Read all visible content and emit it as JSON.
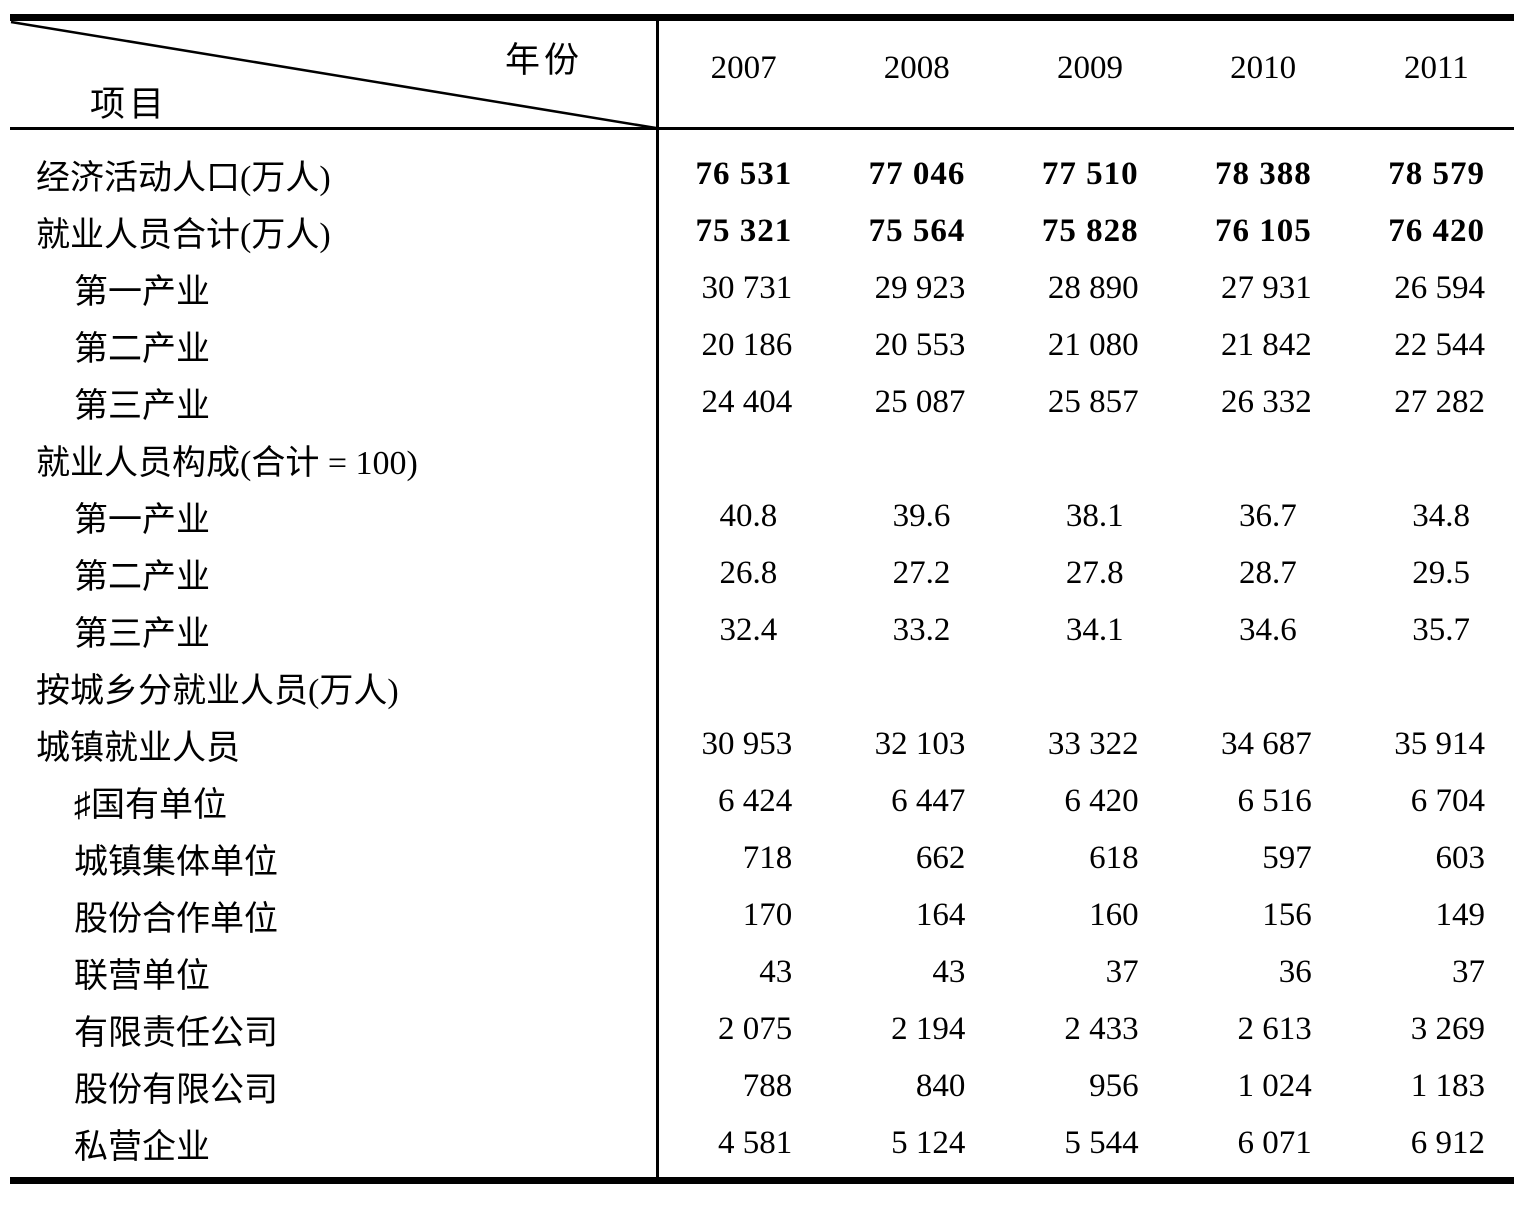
{
  "table": {
    "header": {
      "year_axis_label": "年份",
      "item_axis_label": "项目",
      "years": [
        "2007",
        "2008",
        "2009",
        "2010",
        "2011"
      ]
    },
    "rows": [
      {
        "label": "经济活动人口(万人)",
        "indent": 0,
        "bold": true,
        "values": [
          "76 531",
          "77 046",
          "77 510",
          "78 388",
          "78 579"
        ]
      },
      {
        "label": "就业人员合计(万人)",
        "indent": 0,
        "bold": true,
        "values": [
          "75 321",
          "75 564",
          "75 828",
          "76 105",
          "76 420"
        ]
      },
      {
        "label": "第一产业",
        "indent": 1,
        "bold": false,
        "values": [
          "30 731",
          "29 923",
          "28 890",
          "27 931",
          "26 594"
        ]
      },
      {
        "label": "第二产业",
        "indent": 1,
        "bold": false,
        "values": [
          "20 186",
          "20 553",
          "21 080",
          "21 842",
          "22 544"
        ]
      },
      {
        "label": "第三产业",
        "indent": 1,
        "bold": false,
        "values": [
          "24 404",
          "25 087",
          "25 857",
          "26 332",
          "27 282"
        ]
      },
      {
        "label": "就业人员构成(合计 = 100)",
        "indent": 0,
        "bold": false,
        "values": [
          "",
          "",
          "",
          "",
          ""
        ]
      },
      {
        "label": "第一产业",
        "indent": 1,
        "bold": false,
        "pct": true,
        "values": [
          "40.8",
          "39.6",
          "38.1",
          "36.7",
          "34.8"
        ]
      },
      {
        "label": "第二产业",
        "indent": 1,
        "bold": false,
        "pct": true,
        "values": [
          "26.8",
          "27.2",
          "27.8",
          "28.7",
          "29.5"
        ]
      },
      {
        "label": "第三产业",
        "indent": 1,
        "bold": false,
        "pct": true,
        "values": [
          "32.4",
          "33.2",
          "34.1",
          "34.6",
          "35.7"
        ]
      },
      {
        "label": "按城乡分就业人员(万人)",
        "indent": 0,
        "bold": false,
        "values": [
          "",
          "",
          "",
          "",
          ""
        ]
      },
      {
        "label": "城镇就业人员",
        "indent": 0,
        "bold": false,
        "values": [
          "30 953",
          "32 103",
          "33 322",
          "34 687",
          "35 914"
        ]
      },
      {
        "label": "♯国有单位",
        "indent": 1,
        "bold": false,
        "values": [
          "6 424",
          "6 447",
          "6 420",
          "6 516",
          "6 704"
        ]
      },
      {
        "label": "城镇集体单位",
        "indent": 1,
        "bold": false,
        "values": [
          "718",
          "662",
          "618",
          "597",
          "603"
        ]
      },
      {
        "label": "股份合作单位",
        "indent": 1,
        "bold": false,
        "values": [
          "170",
          "164",
          "160",
          "156",
          "149"
        ]
      },
      {
        "label": "联营单位",
        "indent": 1,
        "bold": false,
        "values": [
          "43",
          "43",
          "37",
          "36",
          "37"
        ]
      },
      {
        "label": "有限责任公司",
        "indent": 1,
        "bold": false,
        "values": [
          "2 075",
          "2 194",
          "2 433",
          "2 613",
          "3 269"
        ]
      },
      {
        "label": "股份有限公司",
        "indent": 1,
        "bold": false,
        "values": [
          "788",
          "840",
          "956",
          "1 024",
          "1 183"
        ]
      },
      {
        "label": "私营企业",
        "indent": 1,
        "bold": false,
        "values": [
          "4 581",
          "5 124",
          "5 544",
          "6 071",
          "6 912"
        ]
      }
    ]
  },
  "chart_data": {
    "type": "table",
    "columns": [
      "2007",
      "2008",
      "2009",
      "2010",
      "2011"
    ],
    "corner_labels": {
      "top_right": "年份",
      "bottom_left": "项目"
    }
  }
}
